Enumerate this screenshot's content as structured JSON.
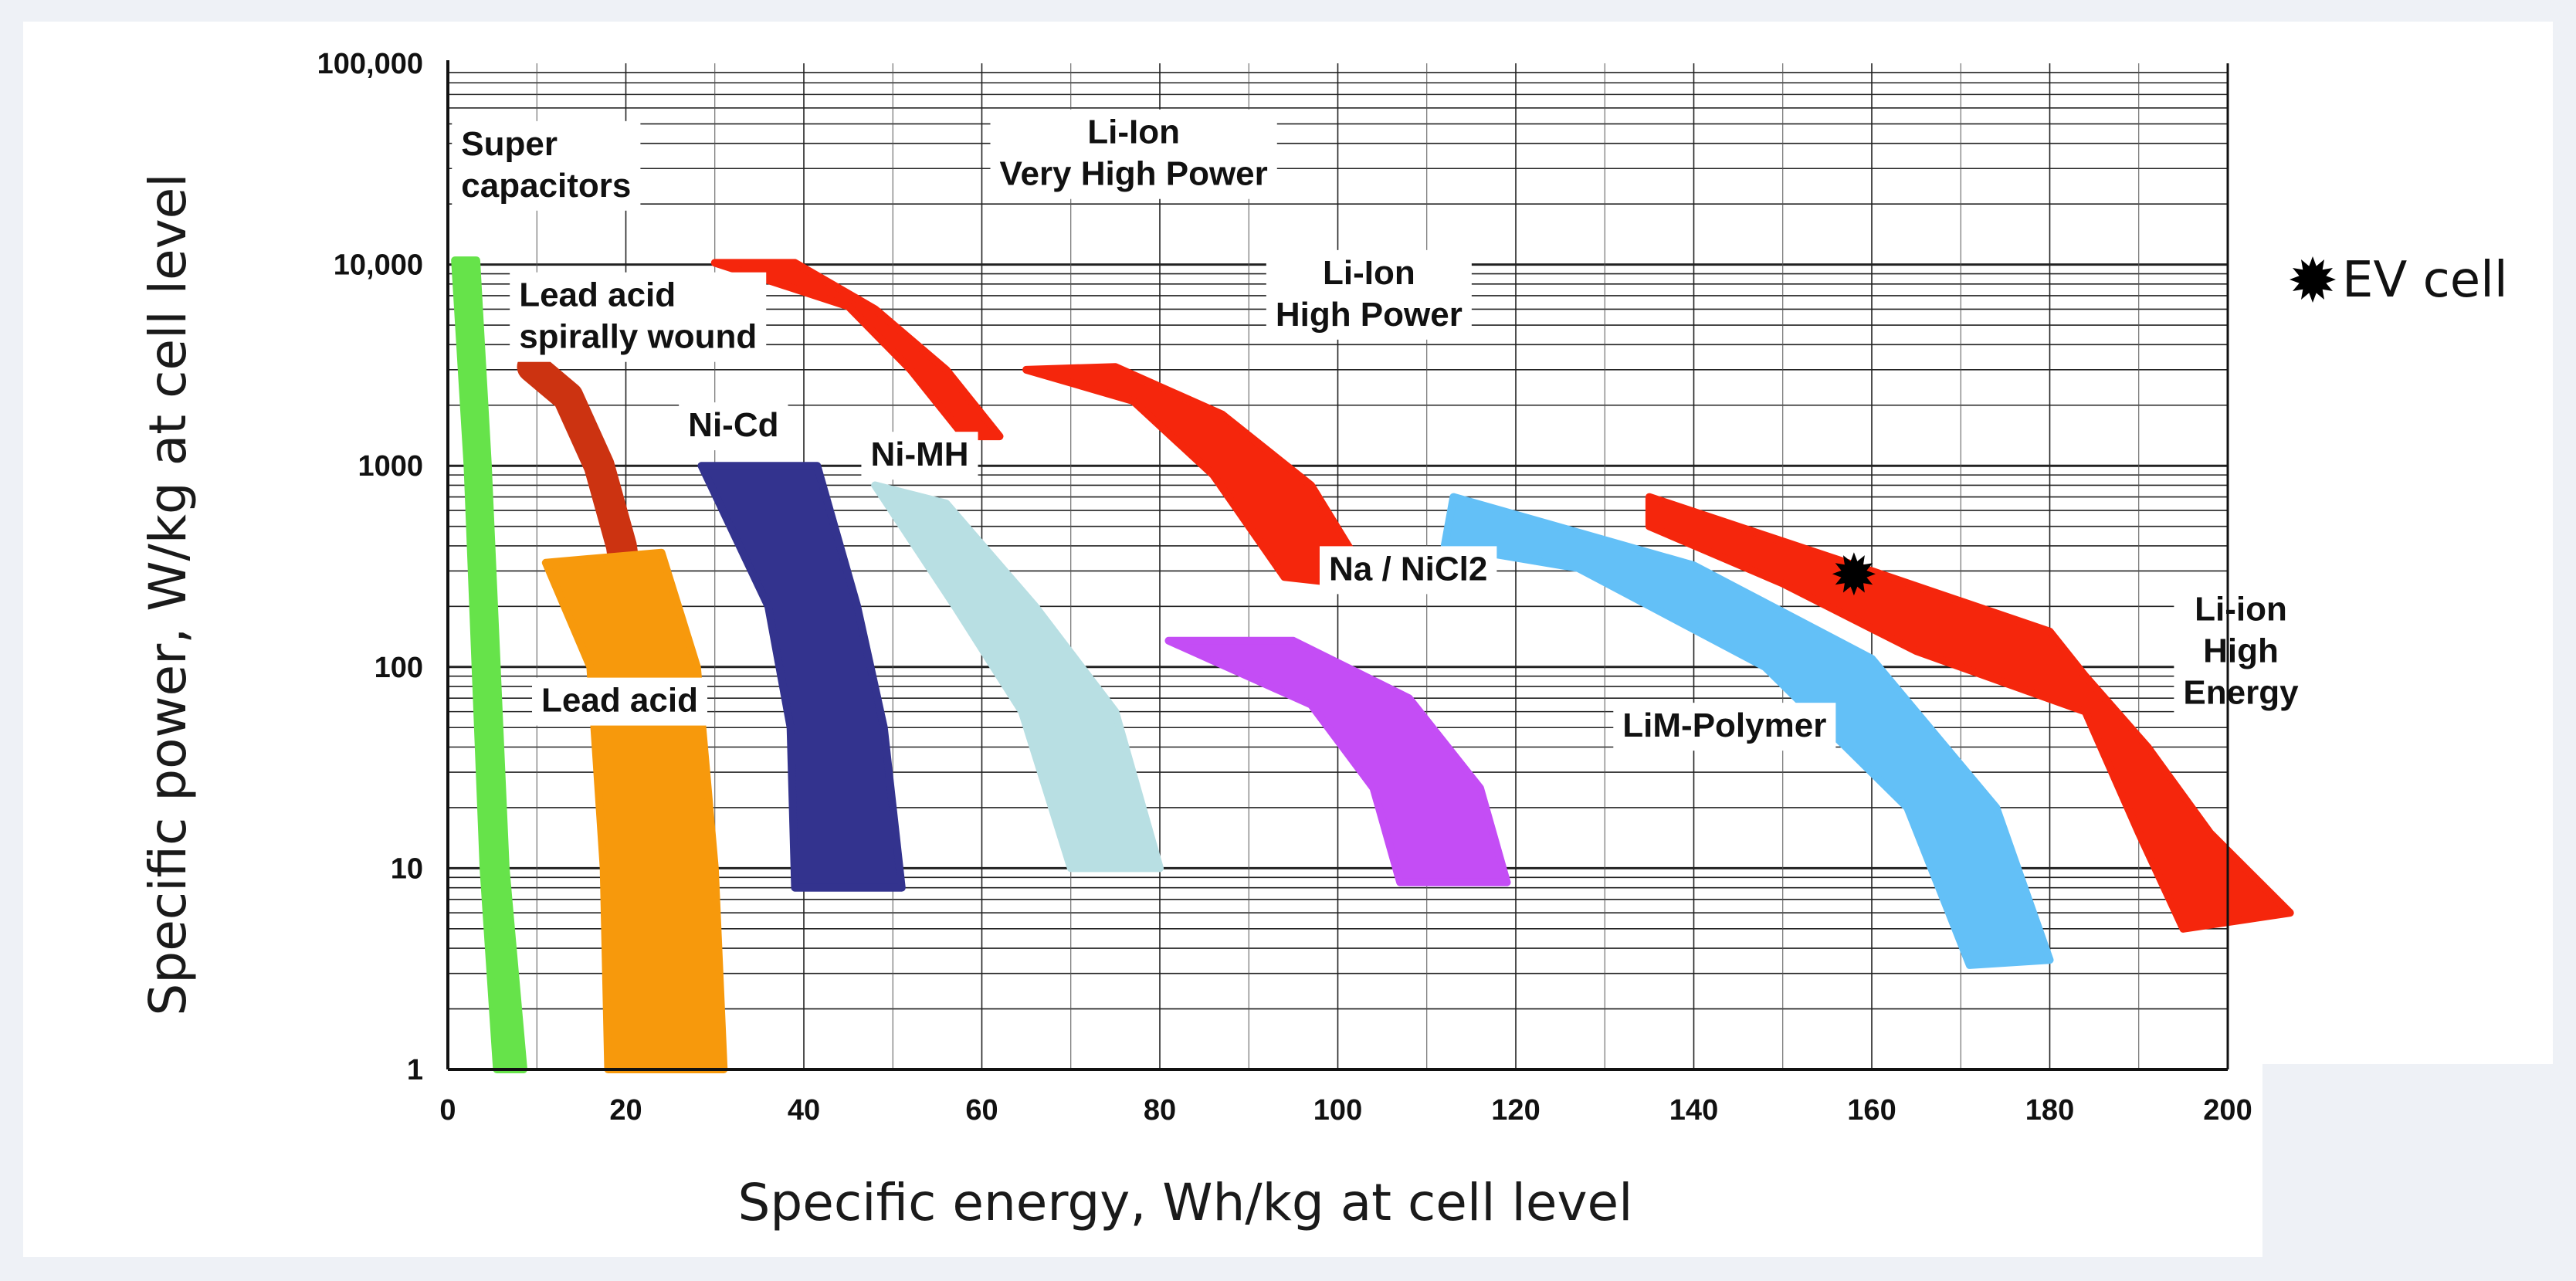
{
  "chart_data": {
    "type": "area",
    "title": "",
    "xlabel": "Specific energy, Wh/kg at cell level",
    "ylabel": "Specific power, W/kg at cell level",
    "xlim": [
      0,
      200
    ],
    "ylim": [
      1,
      100000
    ],
    "yscale": "log",
    "x_ticks": [
      0,
      20,
      40,
      60,
      80,
      100,
      120,
      140,
      160,
      180,
      200
    ],
    "x_tick_labels": [
      "0",
      "20",
      "40",
      "60",
      "80",
      "100",
      "120",
      "140",
      "160",
      "180",
      "200"
    ],
    "y_ticks": [
      1,
      10,
      100,
      1000,
      10000,
      100000
    ],
    "y_tick_labels": [
      "1",
      "10",
      "100",
      "1000",
      "10,000",
      "100,000"
    ],
    "grid": true,
    "series": [
      {
        "name": "Super capacitors",
        "label_lines": [
          "Super",
          "capacitors"
        ],
        "color": "#66e34a",
        "polygon": [
          [
            0.8,
            10500
          ],
          [
            3.2,
            10500
          ],
          [
            4.5,
            1000
          ],
          [
            6.5,
            10
          ],
          [
            8.5,
            1
          ],
          [
            5.5,
            1
          ],
          [
            4.0,
            10
          ],
          [
            2.2,
            1000
          ]
        ],
        "label_anchor": [
          1.5,
          35000
        ]
      },
      {
        "name": "Lead acid spirally wound",
        "label_lines": [
          "Lead acid",
          "spirally wound"
        ],
        "color": "#cc3311",
        "polyline": [
          [
            9.5,
            3100
          ],
          [
            13.5,
            2200
          ],
          [
            17,
            1000
          ],
          [
            19.5,
            400
          ],
          [
            20.5,
            200
          ],
          [
            21,
            100
          ]
        ],
        "label_anchor": [
          8,
          6200
        ]
      },
      {
        "name": "Lead acid",
        "label_lines": [
          "Lead acid"
        ],
        "color": "#f7990c",
        "polygon": [
          [
            11,
            330
          ],
          [
            24,
            370
          ],
          [
            28,
            100
          ],
          [
            30,
            10
          ],
          [
            31,
            1
          ],
          [
            18,
            1
          ],
          [
            17.5,
            10
          ],
          [
            16,
            100
          ]
        ],
        "label_anchor": [
          10.5,
          60
        ]
      },
      {
        "name": "Ni-Cd",
        "label_lines": [
          "Ni-Cd"
        ],
        "color": "#33338e",
        "polygon": [
          [
            28.5,
            1000
          ],
          [
            41.5,
            1000
          ],
          [
            46,
            200
          ],
          [
            49,
            50
          ],
          [
            51,
            8
          ],
          [
            39,
            8
          ],
          [
            38.5,
            50
          ],
          [
            36,
            200
          ]
        ],
        "label_anchor": [
          27,
          1400
        ]
      },
      {
        "name": "Ni-MH",
        "label_lines": [
          "Ni-MH"
        ],
        "color": "#b8dfe3",
        "polygon": [
          [
            48,
            800
          ],
          [
            56,
            650
          ],
          [
            66,
            200
          ],
          [
            75,
            60
          ],
          [
            80,
            10
          ],
          [
            70,
            10
          ],
          [
            64.5,
            60
          ],
          [
            57,
            200
          ]
        ],
        "label_anchor": [
          47.5,
          1000
        ]
      },
      {
        "name": "Li-Ion Very High Power",
        "label_lines": [
          "Li-Ion",
          "Very High Power"
        ],
        "color": "#f5260c",
        "polygon": [
          [
            30,
            10200
          ],
          [
            39,
            10200
          ],
          [
            48,
            6000
          ],
          [
            56,
            3000
          ],
          [
            62,
            1400
          ],
          [
            58,
            1400
          ],
          [
            52,
            3000
          ],
          [
            45,
            6200
          ]
        ],
        "label_anchor": [
          62,
          40000
        ]
      },
      {
        "name": "Li-Ion High Power",
        "label_lines": [
          "Li-Ion",
          "High Power"
        ],
        "color": "#f5260c",
        "polygon": [
          [
            65,
            3000
          ],
          [
            75,
            3100
          ],
          [
            87,
            1800
          ],
          [
            97,
            800
          ],
          [
            104,
            250
          ],
          [
            94,
            280
          ],
          [
            86,
            900
          ],
          [
            77,
            2100
          ]
        ],
        "label_anchor": [
          93,
          8000
        ]
      },
      {
        "name": "Na / NiCl2",
        "label_lines": [
          "Na / NiCl2"
        ],
        "color": "#c44df5",
        "polygon": [
          [
            81,
            135
          ],
          [
            95,
            135
          ],
          [
            108,
            70
          ],
          [
            116,
            25
          ],
          [
            119,
            8.5
          ],
          [
            107,
            8.5
          ],
          [
            104,
            25
          ],
          [
            97,
            65
          ]
        ],
        "label_anchor": [
          99,
          270
        ]
      },
      {
        "name": "LiM-Polymer",
        "label_lines": [
          "LiM-Polymer"
        ],
        "color": "#63c0f7",
        "polygon": [
          [
            113,
            700
          ],
          [
            140,
            320
          ],
          [
            160,
            110
          ],
          [
            174,
            20
          ],
          [
            180,
            3.5
          ],
          [
            171,
            3.3
          ],
          [
            164,
            20
          ],
          [
            148,
            100
          ],
          [
            127,
            310
          ],
          [
            112,
            400
          ]
        ],
        "label_anchor": [
          132,
          45
        ]
      },
      {
        "name": "Li-ion High Energy",
        "label_lines": [
          "Li-ion",
          "High",
          "Energy"
        ],
        "color": "#f5260c",
        "polygon": [
          [
            135,
            700
          ],
          [
            160,
            300
          ],
          [
            180,
            150
          ],
          [
            184,
            90
          ],
          [
            191,
            40
          ],
          [
            198,
            15
          ],
          [
            207,
            6
          ],
          [
            195,
            5
          ],
          [
            190,
            15
          ],
          [
            184,
            60
          ],
          [
            165,
            120
          ],
          [
            150,
            260
          ],
          [
            135,
            500
          ]
        ],
        "label_anchor": [
          195,
          170
        ]
      }
    ],
    "markers": [
      {
        "name": "EV cell",
        "x": 158,
        "y": 290,
        "symbol": "starburst",
        "color": "#000000"
      }
    ],
    "legend": {
      "position": "top-right",
      "items": [
        {
          "label": "EV cell",
          "symbol": "starburst"
        }
      ]
    }
  }
}
